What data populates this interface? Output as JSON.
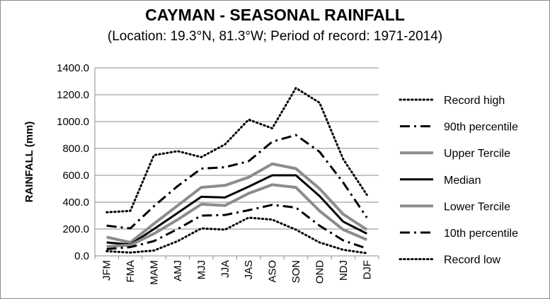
{
  "chart_data": {
    "type": "line",
    "title": "CAYMAN - SEASONAL RAINFALL",
    "subtitle": "(Location: 19.3°N, 81.3°W; Period of record: 1971-2014)",
    "xlabel": "",
    "ylabel": "RAINFALL (mm)",
    "ylim": [
      0,
      1400
    ],
    "yticks": [
      "0.0",
      "200.0",
      "400.0",
      "600.0",
      "800.0",
      "1000.0",
      "1200.0",
      "1400.0"
    ],
    "grid": true,
    "legend_position": "right",
    "categories": [
      "JFM",
      "FMA",
      "MAM",
      "AMJ",
      "MJJ",
      "JJA",
      "JAS",
      "ASO",
      "SON",
      "OND",
      "NDJ",
      "DJF"
    ],
    "series": [
      {
        "name": "Record high",
        "style": "dotted",
        "color": "#000000",
        "values": [
          325,
          335,
          750,
          780,
          735,
          830,
          1015,
          950,
          1250,
          1140,
          720,
          455
        ]
      },
      {
        "name": "90th percentile",
        "style": "dashdot",
        "color": "#000000",
        "values": [
          225,
          205,
          370,
          520,
          650,
          660,
          705,
          850,
          900,
          775,
          545,
          285
        ]
      },
      {
        "name": "Upper Tercile",
        "style": "solid",
        "color": "#8c8c8c",
        "values": [
          140,
          100,
          240,
          375,
          510,
          525,
          585,
          685,
          650,
          500,
          310,
          195
        ]
      },
      {
        "name": "Median",
        "style": "solid",
        "color": "#000000",
        "values": [
          100,
          85,
          200,
          320,
          440,
          435,
          515,
          600,
          600,
          445,
          255,
          165
        ]
      },
      {
        "name": "Lower Tercile",
        "style": "solid",
        "color": "#8c8c8c",
        "values": [
          70,
          80,
          165,
          270,
          385,
          375,
          465,
          530,
          510,
          335,
          195,
          120
        ]
      },
      {
        "name": "10th percentile",
        "style": "dashdot",
        "color": "#000000",
        "values": [
          50,
          65,
          110,
          200,
          300,
          305,
          340,
          380,
          360,
          225,
          115,
          55
        ]
      },
      {
        "name": "Record low",
        "style": "dotted",
        "color": "#000000",
        "values": [
          35,
          25,
          40,
          110,
          205,
          195,
          285,
          270,
          195,
          100,
          45,
          20
        ]
      }
    ]
  }
}
